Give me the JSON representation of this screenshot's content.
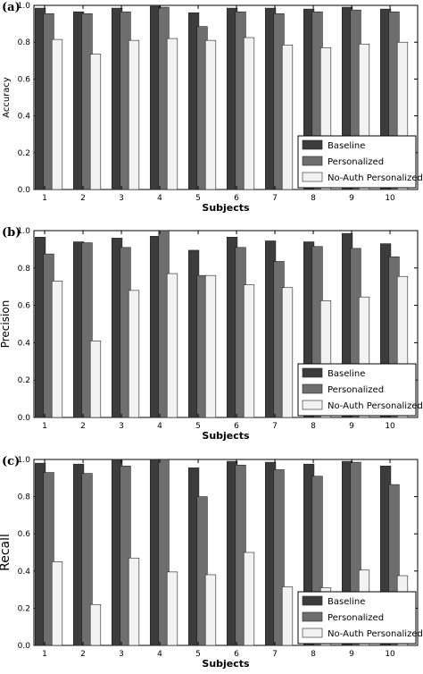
{
  "colors": {
    "baseline": "#3c3c3c",
    "personalized": "#6e6e6e",
    "noauth": "#f2f2f2",
    "edge": "#222222"
  },
  "chart_data": [
    {
      "type": "bar",
      "panel_label": "(a)",
      "ylabel": "Accuracy",
      "xlabel": "Subjects",
      "categories": [
        "1",
        "2",
        "3",
        "4",
        "5",
        "6",
        "7",
        "8",
        "9",
        "10"
      ],
      "ylim": [
        0,
        1.0
      ],
      "yticks": [
        "0.0",
        "0.2",
        "0.4",
        "0.6",
        "0.8",
        "1.0"
      ],
      "legend_position": "lower-right",
      "series": [
        {
          "name": "Baseline",
          "values": [
            0.985,
            0.965,
            0.985,
            0.995,
            0.96,
            0.985,
            0.985,
            0.98,
            0.99,
            0.98
          ]
        },
        {
          "name": "Personalized",
          "values": [
            0.955,
            0.955,
            0.965,
            0.99,
            0.885,
            0.965,
            0.955,
            0.965,
            0.975,
            0.965
          ]
        },
        {
          "name": "No-Auth Personalized",
          "values": [
            0.815,
            0.735,
            0.81,
            0.82,
            0.81,
            0.825,
            0.785,
            0.77,
            0.79,
            0.8
          ]
        }
      ]
    },
    {
      "type": "bar",
      "panel_label": "(b)",
      "ylabel": "Precision",
      "xlabel": "Subjects",
      "categories": [
        "1",
        "2",
        "3",
        "4",
        "5",
        "6",
        "7",
        "8",
        "9",
        "10"
      ],
      "ylim": [
        0,
        1.0
      ],
      "yticks": [
        "0.0",
        "0.2",
        "0.4",
        "0.6",
        "0.8",
        "1.0"
      ],
      "legend_position": "lower-right",
      "series": [
        {
          "name": "Baseline",
          "values": [
            0.965,
            0.94,
            0.96,
            0.97,
            0.895,
            0.965,
            0.945,
            0.94,
            0.985,
            0.93
          ]
        },
        {
          "name": "Personalized",
          "values": [
            0.875,
            0.935,
            0.91,
            1.0,
            0.76,
            0.91,
            0.835,
            0.915,
            0.905,
            0.86
          ]
        },
        {
          "name": "No-Auth Personalized",
          "values": [
            0.73,
            0.41,
            0.68,
            0.77,
            0.76,
            0.71,
            0.695,
            0.625,
            0.645,
            0.755
          ]
        }
      ]
    },
    {
      "type": "bar",
      "panel_label": "(c)",
      "ylabel": "Recall",
      "xlabel": "Subjects",
      "categories": [
        "1",
        "2",
        "3",
        "4",
        "5",
        "6",
        "7",
        "8",
        "9",
        "10"
      ],
      "ylim": [
        0,
        1.0
      ],
      "yticks": [
        "0.0",
        "0.2",
        "0.4",
        "0.6",
        "0.8",
        "1.0"
      ],
      "legend_position": "lower-right",
      "series": [
        {
          "name": "Baseline",
          "values": [
            0.98,
            0.975,
            1.0,
            1.0,
            0.955,
            0.99,
            0.985,
            0.975,
            0.99,
            0.965
          ]
        },
        {
          "name": "Personalized",
          "values": [
            0.93,
            0.925,
            0.965,
            1.0,
            0.8,
            0.97,
            0.945,
            0.91,
            0.985,
            0.865
          ]
        },
        {
          "name": "No-Auth Personalized",
          "values": [
            0.45,
            0.22,
            0.47,
            0.395,
            0.38,
            0.5,
            0.315,
            0.31,
            0.405,
            0.375
          ]
        }
      ]
    }
  ]
}
